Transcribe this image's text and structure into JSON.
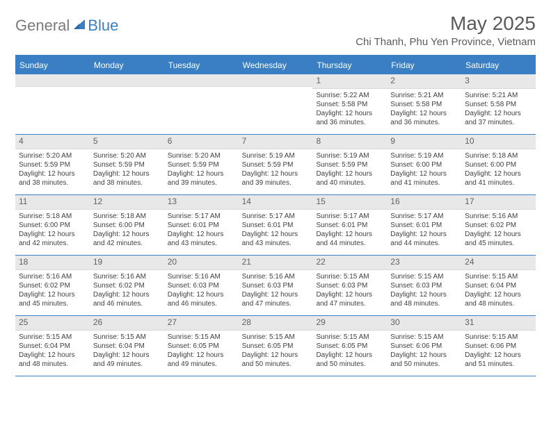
{
  "brand": {
    "part1": "General",
    "part2": "Blue"
  },
  "title": "May 2025",
  "location": "Chi Thanh, Phu Yen Province, Vietnam",
  "colors": {
    "accent": "#3a7fc4",
    "band": "#e8e8e8",
    "text": "#404040",
    "bg": "#ffffff"
  },
  "dow": [
    "Sunday",
    "Monday",
    "Tuesday",
    "Wednesday",
    "Thursday",
    "Friday",
    "Saturday"
  ],
  "weeks": [
    [
      null,
      null,
      null,
      null,
      {
        "n": "1",
        "sr": "5:22 AM",
        "ss": "5:58 PM",
        "dl": "12 hours and 36 minutes."
      },
      {
        "n": "2",
        "sr": "5:21 AM",
        "ss": "5:58 PM",
        "dl": "12 hours and 36 minutes."
      },
      {
        "n": "3",
        "sr": "5:21 AM",
        "ss": "5:58 PM",
        "dl": "12 hours and 37 minutes."
      }
    ],
    [
      {
        "n": "4",
        "sr": "5:20 AM",
        "ss": "5:59 PM",
        "dl": "12 hours and 38 minutes."
      },
      {
        "n": "5",
        "sr": "5:20 AM",
        "ss": "5:59 PM",
        "dl": "12 hours and 38 minutes."
      },
      {
        "n": "6",
        "sr": "5:20 AM",
        "ss": "5:59 PM",
        "dl": "12 hours and 39 minutes."
      },
      {
        "n": "7",
        "sr": "5:19 AM",
        "ss": "5:59 PM",
        "dl": "12 hours and 39 minutes."
      },
      {
        "n": "8",
        "sr": "5:19 AM",
        "ss": "5:59 PM",
        "dl": "12 hours and 40 minutes."
      },
      {
        "n": "9",
        "sr": "5:19 AM",
        "ss": "6:00 PM",
        "dl": "12 hours and 41 minutes."
      },
      {
        "n": "10",
        "sr": "5:18 AM",
        "ss": "6:00 PM",
        "dl": "12 hours and 41 minutes."
      }
    ],
    [
      {
        "n": "11",
        "sr": "5:18 AM",
        "ss": "6:00 PM",
        "dl": "12 hours and 42 minutes."
      },
      {
        "n": "12",
        "sr": "5:18 AM",
        "ss": "6:00 PM",
        "dl": "12 hours and 42 minutes."
      },
      {
        "n": "13",
        "sr": "5:17 AM",
        "ss": "6:01 PM",
        "dl": "12 hours and 43 minutes."
      },
      {
        "n": "14",
        "sr": "5:17 AM",
        "ss": "6:01 PM",
        "dl": "12 hours and 43 minutes."
      },
      {
        "n": "15",
        "sr": "5:17 AM",
        "ss": "6:01 PM",
        "dl": "12 hours and 44 minutes."
      },
      {
        "n": "16",
        "sr": "5:17 AM",
        "ss": "6:01 PM",
        "dl": "12 hours and 44 minutes."
      },
      {
        "n": "17",
        "sr": "5:16 AM",
        "ss": "6:02 PM",
        "dl": "12 hours and 45 minutes."
      }
    ],
    [
      {
        "n": "18",
        "sr": "5:16 AM",
        "ss": "6:02 PM",
        "dl": "12 hours and 45 minutes."
      },
      {
        "n": "19",
        "sr": "5:16 AM",
        "ss": "6:02 PM",
        "dl": "12 hours and 46 minutes."
      },
      {
        "n": "20",
        "sr": "5:16 AM",
        "ss": "6:03 PM",
        "dl": "12 hours and 46 minutes."
      },
      {
        "n": "21",
        "sr": "5:16 AM",
        "ss": "6:03 PM",
        "dl": "12 hours and 47 minutes."
      },
      {
        "n": "22",
        "sr": "5:15 AM",
        "ss": "6:03 PM",
        "dl": "12 hours and 47 minutes."
      },
      {
        "n": "23",
        "sr": "5:15 AM",
        "ss": "6:03 PM",
        "dl": "12 hours and 48 minutes."
      },
      {
        "n": "24",
        "sr": "5:15 AM",
        "ss": "6:04 PM",
        "dl": "12 hours and 48 minutes."
      }
    ],
    [
      {
        "n": "25",
        "sr": "5:15 AM",
        "ss": "6:04 PM",
        "dl": "12 hours and 48 minutes."
      },
      {
        "n": "26",
        "sr": "5:15 AM",
        "ss": "6:04 PM",
        "dl": "12 hours and 49 minutes."
      },
      {
        "n": "27",
        "sr": "5:15 AM",
        "ss": "6:05 PM",
        "dl": "12 hours and 49 minutes."
      },
      {
        "n": "28",
        "sr": "5:15 AM",
        "ss": "6:05 PM",
        "dl": "12 hours and 50 minutes."
      },
      {
        "n": "29",
        "sr": "5:15 AM",
        "ss": "6:05 PM",
        "dl": "12 hours and 50 minutes."
      },
      {
        "n": "30",
        "sr": "5:15 AM",
        "ss": "6:06 PM",
        "dl": "12 hours and 50 minutes."
      },
      {
        "n": "31",
        "sr": "5:15 AM",
        "ss": "6:06 PM",
        "dl": "12 hours and 51 minutes."
      }
    ]
  ],
  "labels": {
    "sunrise": "Sunrise: ",
    "sunset": "Sunset: ",
    "daylight": "Daylight: "
  }
}
